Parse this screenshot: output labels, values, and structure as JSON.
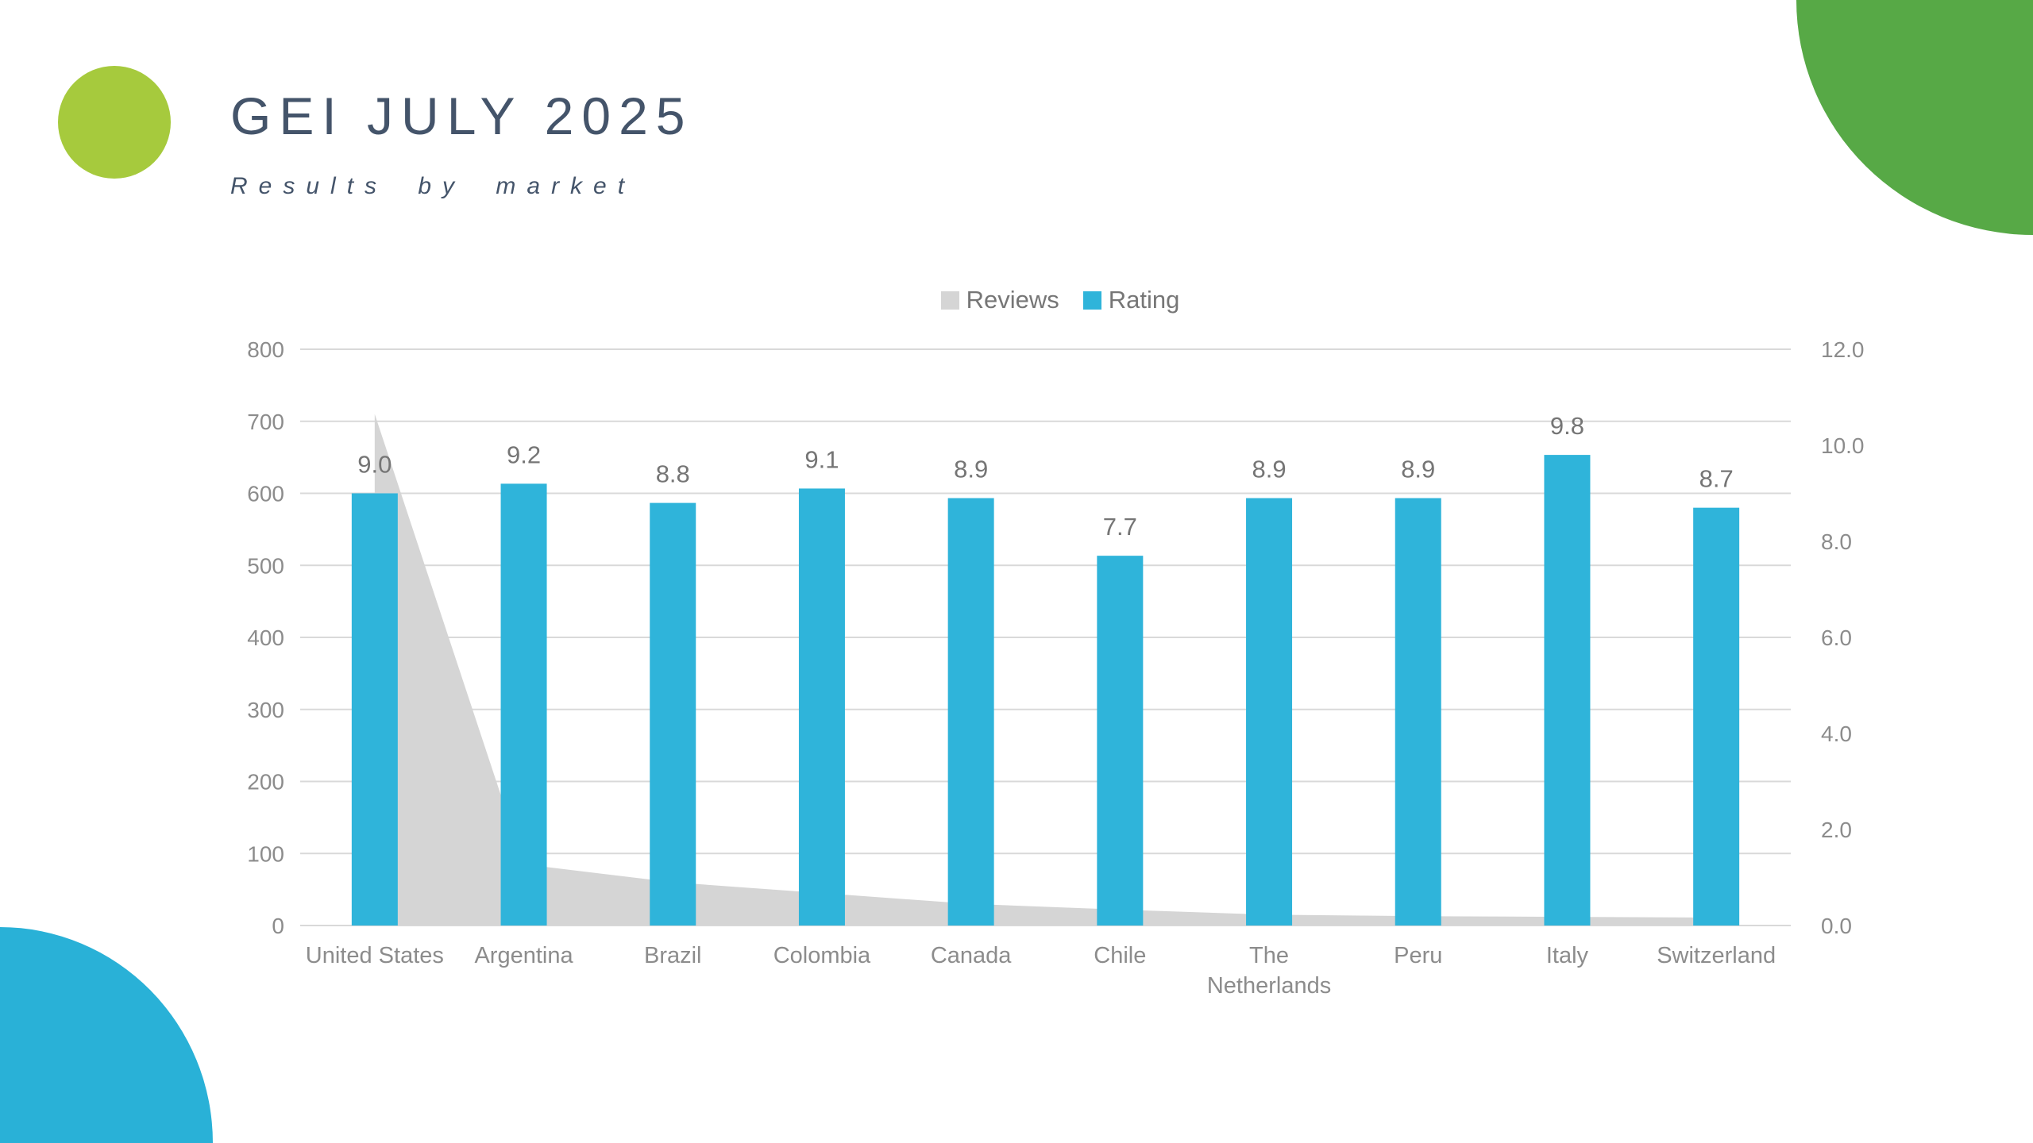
{
  "page": {
    "title": "GEI JULY 2025",
    "subtitle": "Results by market"
  },
  "theme": {
    "title_color": "#44546a",
    "bar_color": "#2fb4da",
    "area_color": "#d5d5d5",
    "gridline_color": "#d9d9d9",
    "axis_text_color": "#8c8c8c",
    "data_label_color": "#757575",
    "legend_text_color": "#767676",
    "decor_top_left_circle_color": "#a6ca3d",
    "decor_top_right_blob_color": "#57a946",
    "decor_bottom_left_blob_color": "#29b1d7"
  },
  "chart_data": {
    "type": "combo",
    "title": "",
    "grid": true,
    "legend": {
      "position": "top",
      "entries": [
        {
          "label": "Reviews",
          "color": "#d5d5d5"
        },
        {
          "label": "Rating",
          "color": "#2fb4da"
        }
      ]
    },
    "categories": [
      "United States",
      "Argentina",
      "Brazil",
      "Colombia",
      "Canada",
      "Chile",
      "The Netherlands",
      "Peru",
      "Italy",
      "Switzerland"
    ],
    "series": [
      {
        "name": "Reviews",
        "type": "area",
        "axis": "left",
        "color": "#d5d5d5",
        "values": [
          710,
          85,
          60,
          45,
          30,
          22,
          15,
          13,
          12,
          11
        ]
      },
      {
        "name": "Rating",
        "type": "bar",
        "axis": "right",
        "color": "#2fb4da",
        "values": [
          9.0,
          9.2,
          8.8,
          9.1,
          8.9,
          7.7,
          8.9,
          8.9,
          9.8,
          8.7
        ],
        "data_labels": [
          "9.0",
          "9.2",
          "8.8",
          "9.1",
          "8.9",
          "7.7",
          "8.9",
          "8.9",
          "9.8",
          "8.7"
        ]
      }
    ],
    "axes": {
      "left": {
        "min": 0,
        "max": 800,
        "step": 100,
        "tick_labels": [
          "0",
          "100",
          "200",
          "300",
          "400",
          "500",
          "600",
          "700",
          "800"
        ]
      },
      "right": {
        "min": 0,
        "max": 12,
        "step": 2,
        "tick_labels": [
          "0.0",
          "2.0",
          "4.0",
          "6.0",
          "8.0",
          "10.0",
          "12.0"
        ]
      }
    }
  }
}
